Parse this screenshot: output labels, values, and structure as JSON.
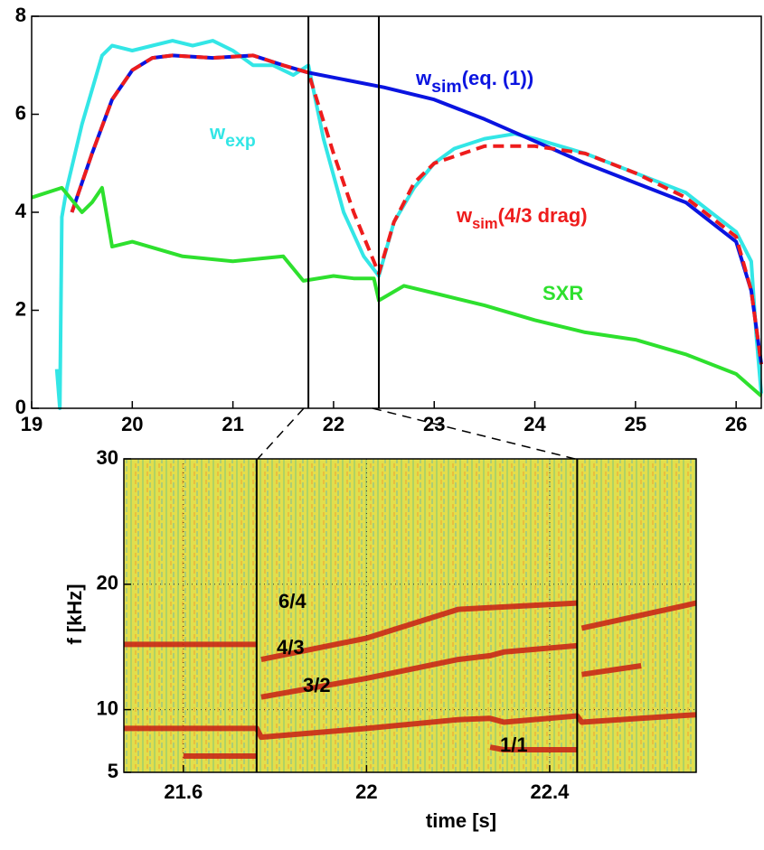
{
  "chart_data": [
    {
      "type": "line",
      "xlim": [
        19,
        26.25
      ],
      "ylim": [
        0,
        8
      ],
      "xticks": [
        19,
        20,
        21,
        22,
        23,
        24,
        25,
        26
      ],
      "yticks": [
        0,
        2,
        4,
        6,
        8
      ],
      "markers_x": [
        21.75,
        22.45
      ],
      "series": [
        {
          "name": "w",
          "subscript": "exp",
          "color": "#33e6e6",
          "dashed": false,
          "x": [
            19.25,
            19.28,
            19.3,
            19.35,
            19.5,
            19.7,
            19.8,
            20,
            20.2,
            20.4,
            20.6,
            20.8,
            21,
            21.2,
            21.4,
            21.6,
            21.75,
            21.9,
            22.1,
            22.3,
            22.45,
            22.6,
            22.8,
            23,
            23.2,
            23.5,
            23.8,
            24,
            24.5,
            25,
            25.5,
            26,
            26.15,
            26.2,
            26.25
          ],
          "values": [
            0.8,
            0,
            3.9,
            4.5,
            5.8,
            7.2,
            7.4,
            7.3,
            7.4,
            7.5,
            7.4,
            7.5,
            7.3,
            7,
            7,
            6.8,
            7,
            5.5,
            4,
            3.1,
            2.7,
            3.8,
            4.5,
            5,
            5.3,
            5.5,
            5.6,
            5.5,
            5.2,
            4.8,
            4.4,
            3.6,
            3,
            1.5,
            0.3
          ]
        },
        {
          "name": "w",
          "subscript": "sim",
          "suffix": "(eq. (1))",
          "color": "#0a14e0",
          "dashed": false,
          "x": [
            19.4,
            19.6,
            19.8,
            20,
            20.2,
            20.4,
            20.8,
            21.2,
            21.5,
            21.75,
            22,
            22.5,
            23,
            23.5,
            24,
            24.5,
            25,
            25.5,
            26,
            26.15,
            26.25
          ],
          "values": [
            4,
            5.2,
            6.3,
            6.9,
            7.15,
            7.2,
            7.15,
            7.2,
            7,
            6.85,
            6.75,
            6.55,
            6.3,
            5.9,
            5.45,
            5,
            4.6,
            4.2,
            3.4,
            2.4,
            0.9
          ]
        },
        {
          "name": "w",
          "subscript": "sim",
          "suffix": "(4/3 drag)",
          "color": "#ee1c1c",
          "dashed": true,
          "x": [
            19.4,
            19.6,
            19.8,
            20,
            20.2,
            20.4,
            20.8,
            21.2,
            21.5,
            21.75,
            22,
            22.2,
            22.45,
            22.6,
            22.8,
            23,
            23.5,
            24,
            24.5,
            25,
            25.5,
            26,
            26.15,
            26.25
          ],
          "values": [
            4,
            5.2,
            6.3,
            6.9,
            7.15,
            7.2,
            7.15,
            7.2,
            7,
            6.85,
            5.2,
            4,
            2.75,
            3.8,
            4.6,
            5,
            5.35,
            5.35,
            5.2,
            4.8,
            4.3,
            3.5,
            2.4,
            0.9
          ]
        },
        {
          "name": "SXR",
          "color": "#2ee02e",
          "dashed": false,
          "x": [
            19,
            19.3,
            19.5,
            19.6,
            19.7,
            19.8,
            20,
            20.5,
            21,
            21.5,
            21.7,
            22,
            22.2,
            22.4,
            22.45,
            22.7,
            23,
            23.5,
            24,
            24.5,
            25,
            25.5,
            26,
            26.25
          ],
          "values": [
            4.3,
            4.5,
            4,
            4.2,
            4.5,
            3.3,
            3.4,
            3.1,
            3,
            3.1,
            2.6,
            2.7,
            2.65,
            2.65,
            2.2,
            2.5,
            2.35,
            2.1,
            1.8,
            1.55,
            1.4,
            1.1,
            0.7,
            0.25
          ]
        }
      ]
    },
    {
      "type": "spectrogram",
      "xlim": [
        21.47,
        22.72
      ],
      "ylim": [
        5,
        30
      ],
      "xticks": [
        21.6,
        22,
        22.4
      ],
      "yticks": [
        5,
        10,
        20,
        30
      ],
      "grid": true,
      "xlabel": "time  [s]",
      "ylabel": "f [kHz]",
      "markers_x": [
        21.76,
        22.46
      ],
      "series": [
        {
          "name": "6/4",
          "color": "#c81e14",
          "x": [
            21.47,
            21.76,
            21.765,
            21.77,
            22,
            22.2,
            22.46,
            22.465,
            22.47,
            22.72
          ],
          "values": [
            15.2,
            15.2,
            null,
            14,
            15.7,
            18,
            18.5,
            null,
            16.5,
            18.5
          ]
        },
        {
          "name": "4/3",
          "color": "#c81e14",
          "x": [
            21.77,
            22,
            22.2,
            22.27,
            22.3,
            22.46,
            22.465,
            22.47,
            22.6
          ],
          "values": [
            11,
            12.5,
            14,
            14.3,
            14.6,
            15.1,
            null,
            12.8,
            13.5
          ]
        },
        {
          "name": "3/2",
          "color": "#c81e14",
          "x": [
            21.47,
            21.76,
            21.77,
            22,
            22.2,
            22.27,
            22.3,
            22.46,
            22.47,
            22.72
          ],
          "values": [
            8.5,
            8.5,
            7.8,
            8.5,
            9.2,
            9.3,
            9,
            9.5,
            9,
            9.6
          ]
        },
        {
          "name": "1/1",
          "color": "#c81e14",
          "x": [
            21.6,
            21.76,
            21.8,
            22.27,
            22.3,
            22.46
          ],
          "values": [
            6.3,
            6.3,
            null,
            7,
            6.8,
            6.8
          ]
        }
      ]
    }
  ]
}
